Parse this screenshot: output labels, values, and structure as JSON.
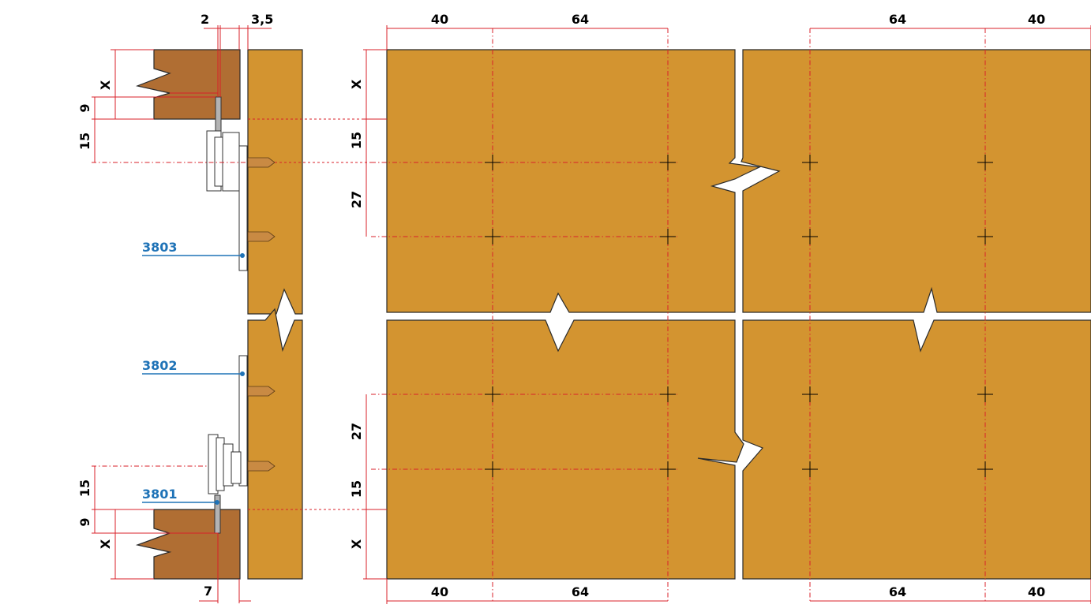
{
  "top_dims": [
    "2",
    "3,5",
    "40",
    "64",
    "64",
    "40"
  ],
  "bottom_dims": [
    "7",
    "40",
    "64",
    "64",
    "40"
  ],
  "left_side_dims": [
    "X",
    "9",
    "15",
    "15",
    "9",
    "X"
  ],
  "panel_dims": [
    "X",
    "15",
    "27",
    "27",
    "15",
    "X"
  ],
  "part_refs": [
    "3803",
    "3802",
    "3801"
  ],
  "colors": {
    "panel": "#d39430",
    "wood": "#b06e33",
    "dimension_lines": "#d8202a",
    "part_references": "#1f73b7"
  }
}
